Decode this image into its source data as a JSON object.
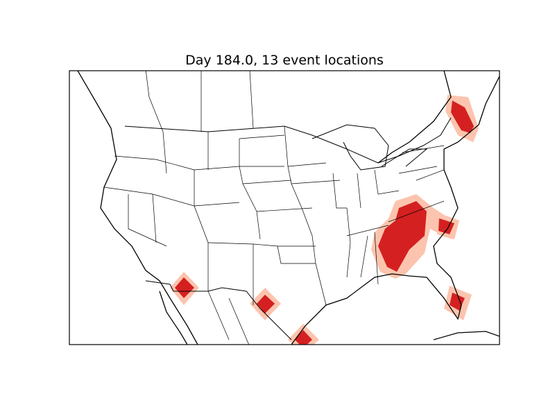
{
  "figure": {
    "title": "Day 184.0, 13 event locations"
  },
  "map": {
    "region": "North America (contiguous US, southern Canada, northern Mexico)",
    "features": [
      "coastlines",
      "country-borders",
      "state-borders"
    ],
    "colors": {
      "background": "#ffffff",
      "border": "#000000",
      "event_core": "#d42020",
      "event_halo": "#fcc4ae"
    },
    "event_count": 13
  }
}
